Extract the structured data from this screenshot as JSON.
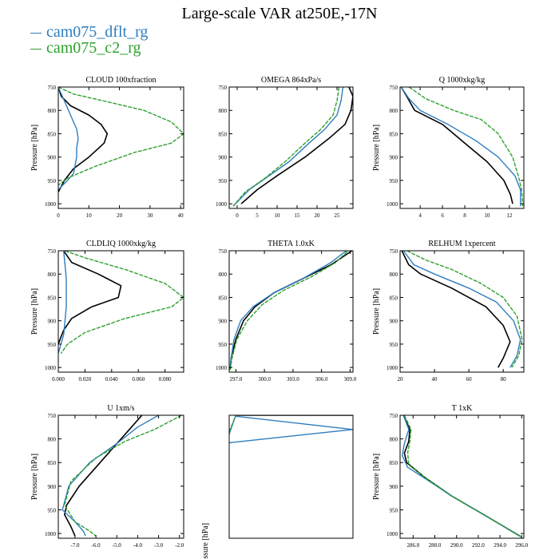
{
  "figure": {
    "title": "Large-scale VAR at250E,-17N",
    "legend": [
      {
        "label": "cam075_dflt_rg",
        "color": "#2e7dbf",
        "dashed": false
      },
      {
        "label": "cam075_c2_rg",
        "color": "#2ea02e",
        "dashed": true
      }
    ],
    "black_line_color": "#000000"
  },
  "chart_data": [
    {
      "type": "line",
      "title": "CLOUD  100xfraction",
      "ylabel": "Pressure [hPa]",
      "xlim": [
        0,
        41
      ],
      "ylim": [
        1010,
        750
      ],
      "xticks": [
        "0",
        "10",
        "20",
        "30",
        "40"
      ],
      "xtick_values": [
        0,
        10,
        20,
        30,
        40
      ],
      "yticks": [
        "750",
        "800",
        "850",
        "900",
        "950",
        "1000"
      ],
      "ytick_values": [
        750,
        800,
        850,
        900,
        950,
        1000
      ],
      "series": [
        {
          "color": "#000000",
          "dashed": false,
          "x": [
            0,
            1,
            4,
            10,
            14,
            16,
            15,
            10,
            5,
            2,
            0
          ],
          "y": [
            750,
            770,
            790,
            810,
            830,
            850,
            870,
            900,
            925,
            950,
            975
          ]
        },
        {
          "color": "#2e7dbf",
          "dashed": false,
          "x": [
            0,
            2,
            4,
            6,
            6.5,
            6,
            6,
            5,
            3,
            0
          ],
          "y": [
            750,
            780,
            810,
            840,
            860,
            880,
            900,
            935,
            950,
            970
          ]
        },
        {
          "color": "#2ea02e",
          "dashed": true,
          "x": [
            0,
            5,
            15,
            28,
            37,
            41,
            37,
            25,
            12,
            3,
            0
          ],
          "y": [
            750,
            765,
            780,
            800,
            825,
            850,
            870,
            890,
            920,
            945,
            960
          ]
        }
      ]
    },
    {
      "type": "line",
      "title": "OMEGA  864xPa/s",
      "ylabel": "",
      "xlim": [
        -2,
        29
      ],
      "ylim": [
        1010,
        750
      ],
      "xticks": [
        "0",
        "5",
        "10",
        "15",
        "20",
        "25"
      ],
      "xtick_values": [
        0,
        5,
        10,
        15,
        20,
        25
      ],
      "yticks": [
        "750",
        "800",
        "850",
        "900",
        "950",
        "1000"
      ],
      "ytick_values": [
        750,
        800,
        850,
        900,
        950,
        1000
      ],
      "series": [
        {
          "color": "#000000",
          "dashed": false,
          "x": [
            28,
            29,
            28.5,
            27,
            23,
            17,
            10,
            5,
            1
          ],
          "y": [
            750,
            770,
            800,
            830,
            860,
            900,
            940,
            970,
            1000
          ]
        },
        {
          "color": "#2e7dbf",
          "dashed": false,
          "x": [
            26.5,
            26,
            25,
            22,
            18,
            13,
            8,
            3,
            -1
          ],
          "y": [
            750,
            780,
            810,
            840,
            870,
            910,
            940,
            970,
            1005
          ]
        },
        {
          "color": "#2ea02e",
          "dashed": true,
          "x": [
            25.5,
            25,
            24,
            21,
            17,
            12,
            7,
            2,
            -1
          ],
          "y": [
            750,
            780,
            810,
            840,
            870,
            910,
            945,
            975,
            1005
          ]
        }
      ]
    },
    {
      "type": "line",
      "title": "Q  1000xkg/kg",
      "ylabel": "Pressure [hPa]",
      "xlim": [
        2.2,
        13.3
      ],
      "ylim": [
        1010,
        750
      ],
      "xticks": [
        "4",
        "6",
        "8",
        "10",
        "12"
      ],
      "xtick_values": [
        4,
        6,
        8,
        10,
        12
      ],
      "yticks": [
        "750",
        "800",
        "850",
        "900",
        "950",
        "1000"
      ],
      "ytick_values": [
        750,
        800,
        850,
        900,
        950,
        1000
      ],
      "series": [
        {
          "color": "#000000",
          "dashed": false,
          "x": [
            2.3,
            2.8,
            3.5,
            6,
            8,
            10,
            11.5,
            12.1,
            12.3
          ],
          "y": [
            750,
            770,
            800,
            830,
            870,
            910,
            950,
            980,
            1000
          ]
        },
        {
          "color": "#2e7dbf",
          "dashed": false,
          "x": [
            2.3,
            3,
            4,
            6.5,
            9,
            11,
            12.5,
            13,
            13
          ],
          "y": [
            750,
            775,
            800,
            830,
            865,
            900,
            940,
            970,
            1005
          ]
        },
        {
          "color": "#2ea02e",
          "dashed": true,
          "x": [
            3,
            4.5,
            7,
            9.5,
            11,
            12.3,
            12.8,
            13.1,
            13.2
          ],
          "y": [
            750,
            775,
            800,
            820,
            850,
            900,
            940,
            970,
            1005
          ]
        }
      ]
    },
    {
      "type": "line",
      "title": "CLDLIQ  1000xkg/kg",
      "ylabel": "Pressure [hPa]",
      "xlim": [
        0,
        0.094
      ],
      "ylim": [
        1010,
        750
      ],
      "xticks": [
        "0.000",
        "0.020",
        "0.040",
        "0.060",
        "0.080"
      ],
      "xtick_values": [
        0,
        0.02,
        0.04,
        0.06,
        0.08
      ],
      "yticks": [
        "750",
        "800",
        "850",
        "900",
        "950",
        "1000"
      ],
      "ytick_values": [
        750,
        800,
        850,
        900,
        950,
        1000
      ],
      "series": [
        {
          "color": "#000000",
          "dashed": false,
          "x": [
            0.004,
            0.01,
            0.03,
            0.047,
            0.045,
            0.025,
            0.01,
            0.004,
            0.002,
            0
          ],
          "y": [
            750,
            775,
            800,
            825,
            850,
            870,
            895,
            920,
            935,
            950
          ]
        },
        {
          "color": "#2e7dbf",
          "dashed": false,
          "x": [
            0.004,
            0.005,
            0.006,
            0.006,
            0.006,
            0.005,
            0.004,
            0.002,
            0
          ],
          "y": [
            750,
            780,
            810,
            840,
            870,
            900,
            930,
            950,
            970
          ]
        },
        {
          "color": "#2ea02e",
          "dashed": true,
          "x": [
            0.005,
            0.02,
            0.05,
            0.08,
            0.094,
            0.085,
            0.05,
            0.02,
            0.007,
            0.002
          ],
          "y": [
            750,
            765,
            790,
            820,
            850,
            870,
            895,
            925,
            950,
            970
          ]
        }
      ]
    },
    {
      "type": "line",
      "title": "THETA  1.0xK",
      "ylabel": "",
      "xlim": [
        296.3,
        309.3
      ],
      "ylim": [
        1010,
        750
      ],
      "xticks": [
        "297.0",
        "300.0",
        "303.0",
        "306.0",
        "309.0"
      ],
      "xtick_values": [
        297,
        300,
        303,
        306,
        309
      ],
      "yticks": [
        "750",
        "800",
        "850",
        "900",
        "950",
        "1000"
      ],
      "ytick_values": [
        750,
        800,
        850,
        900,
        950,
        1000
      ],
      "series": [
        {
          "color": "#000000",
          "dashed": false,
          "x": [
            296.4,
            296.5,
            297,
            297.8,
            299,
            301,
            304,
            307,
            309.2
          ],
          "y": [
            1005,
            980,
            940,
            900,
            870,
            840,
            810,
            780,
            750
          ]
        },
        {
          "color": "#2e7dbf",
          "dashed": false,
          "x": [
            296.4,
            296.5,
            296.8,
            297.5,
            298.8,
            301,
            304,
            307,
            308.6
          ],
          "y": [
            1005,
            980,
            940,
            900,
            870,
            840,
            810,
            775,
            750
          ]
        },
        {
          "color": "#2ea02e",
          "dashed": true,
          "x": [
            296.4,
            296.6,
            297.1,
            298.2,
            299.8,
            302,
            305,
            307.5,
            308.8
          ],
          "y": [
            1005,
            980,
            940,
            900,
            865,
            835,
            805,
            775,
            750
          ]
        }
      ]
    },
    {
      "type": "line",
      "title": "RELHUM  1xpercent",
      "ylabel": "Pressure [hPa]",
      "xlim": [
        20,
        92
      ],
      "ylim": [
        1010,
        750
      ],
      "xticks": [
        "20",
        "40",
        "60",
        "80"
      ],
      "xtick_values": [
        20,
        40,
        60,
        80
      ],
      "yticks": [
        "750",
        "800",
        "850",
        "900",
        "950",
        "1000"
      ],
      "ytick_values": [
        750,
        800,
        850,
        900,
        950,
        1000
      ],
      "series": [
        {
          "color": "#000000",
          "dashed": false,
          "x": [
            21,
            25,
            32,
            50,
            70,
            80,
            84,
            80,
            77
          ],
          "y": [
            750,
            780,
            800,
            830,
            870,
            910,
            945,
            980,
            1000
          ]
        },
        {
          "color": "#2e7dbf",
          "dashed": false,
          "x": [
            22,
            28,
            40,
            60,
            76,
            86,
            90,
            88,
            84
          ],
          "y": [
            750,
            780,
            800,
            830,
            860,
            900,
            940,
            975,
            1000
          ]
        },
        {
          "color": "#2ea02e",
          "dashed": true,
          "x": [
            24,
            35,
            50,
            67,
            80,
            88,
            91,
            89,
            85
          ],
          "y": [
            750,
            770,
            790,
            820,
            850,
            890,
            940,
            975,
            1000
          ]
        }
      ]
    },
    {
      "type": "line",
      "title": "U  1xm/s",
      "ylabel": "Pressure [hPa]",
      "xlim": [
        -7.8,
        -1.8
      ],
      "ylim": [
        1010,
        750
      ],
      "xticks": [
        "-7.0",
        "-6.0",
        "-5.0",
        "-4.0",
        "-3.0",
        "-2.0"
      ],
      "xtick_values": [
        -7,
        -6,
        -5,
        -4,
        -3,
        -2
      ],
      "yticks": [
        "750",
        "800",
        "850",
        "900",
        "950",
        "1000"
      ],
      "ytick_values": [
        750,
        800,
        850,
        900,
        950,
        1000
      ],
      "series": [
        {
          "color": "#000000",
          "dashed": false,
          "x": [
            -3.8,
            -4.4,
            -5.2,
            -6,
            -6.8,
            -7.4,
            -7.5,
            -7.2,
            -7
          ],
          "y": [
            750,
            780,
            820,
            860,
            900,
            940,
            960,
            985,
            1005
          ]
        },
        {
          "color": "#2e7dbf",
          "dashed": false,
          "x": [
            -3,
            -4,
            -5,
            -6.3,
            -7.3,
            -7.6,
            -7,
            -6.6,
            -6.5
          ],
          "y": [
            750,
            775,
            810,
            850,
            900,
            950,
            975,
            995,
            1005
          ]
        },
        {
          "color": "#2ea02e",
          "dashed": true,
          "x": [
            -1.9,
            -3.2,
            -4.6,
            -6,
            -7.2,
            -7.5,
            -7,
            -6.3,
            -6
          ],
          "y": [
            750,
            780,
            805,
            840,
            890,
            940,
            975,
            995,
            1005
          ]
        }
      ]
    },
    {
      "type": "line",
      "title": "",
      "ylabel": "Pressure [hPa]",
      "xlim": [
        0,
        1
      ],
      "ylim": [
        1010,
        750
      ],
      "xticks": [],
      "xtick_values": [],
      "yticks": [],
      "ytick_values": [],
      "series": [
        {
          "color": "#000000",
          "dashed": false,
          "x": [
            0.05,
            1
          ],
          "y": [
            750,
            750
          ]
        },
        {
          "color": "#2e7dbf",
          "dashed": false,
          "x": [
            0,
            0.05,
            1,
            0
          ],
          "y": [
            790,
            752,
            780,
            808
          ]
        },
        {
          "color": "#2ea02e",
          "dashed": true,
          "x": [
            0,
            0.05
          ],
          "y": [
            785,
            752
          ]
        }
      ]
    },
    {
      "type": "line",
      "title": "T  1xK",
      "ylabel": "Pressure [hPa]",
      "xlim": [
        284.8,
        296.2
      ],
      "ylim": [
        1010,
        750
      ],
      "xticks": [
        "286.0",
        "288.0",
        "290.0",
        "292.0",
        "294.0",
        "296.0"
      ],
      "xtick_values": [
        286,
        288,
        290,
        292,
        294,
        296
      ],
      "yticks": [
        "750",
        "800",
        "850",
        "900",
        "950",
        "1000"
      ],
      "ytick_values": [
        750,
        800,
        850,
        900,
        950,
        1000
      ],
      "series": [
        {
          "color": "#000000",
          "dashed": false,
          "x": [
            285.1,
            285.7,
            285.6,
            285.2,
            285.4,
            287,
            289.5,
            292.5,
            295.8
          ],
          "y": [
            750,
            780,
            805,
            830,
            850,
            880,
            920,
            960,
            1005
          ]
        },
        {
          "color": "#2e7dbf",
          "dashed": false,
          "x": [
            285.1,
            285.6,
            285.2,
            285,
            285.5,
            287.2,
            289.5,
            292.5,
            296
          ],
          "y": [
            750,
            780,
            810,
            835,
            860,
            885,
            920,
            960,
            1008
          ]
        },
        {
          "color": "#2ea02e",
          "dashed": true,
          "x": [
            285.2,
            285.8,
            285.7,
            285.5,
            285.6,
            287,
            289.5,
            292.5,
            295.9
          ],
          "y": [
            750,
            780,
            805,
            830,
            855,
            880,
            920,
            960,
            1006
          ]
        }
      ]
    }
  ]
}
